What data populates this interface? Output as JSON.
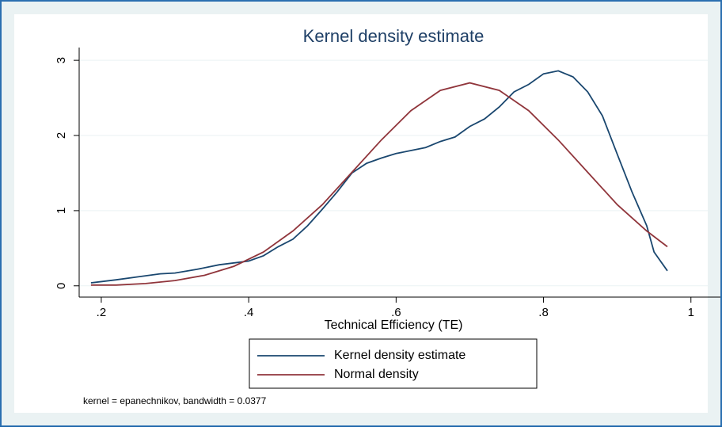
{
  "chart_data": {
    "type": "line",
    "title": "Kernel density estimate",
    "x_label": "Technical Efficiency (TE)",
    "note": "kernel = epanechnikov, bandwidth = 0.0377",
    "xlim": [
      0.17,
      1.04
    ],
    "ylim": [
      -0.15,
      3.17
    ],
    "xticks": [
      {
        "value": 0.2,
        "label": ".2"
      },
      {
        "value": 0.4,
        "label": ".4"
      },
      {
        "value": 0.6,
        "label": ".6"
      },
      {
        "value": 0.8,
        "label": ".8"
      },
      1
    ],
    "yticks": [
      0,
      1,
      2,
      3
    ],
    "grid": true,
    "series": [
      {
        "name": "Kernel density estimate",
        "color": "#1a476f",
        "x": [
          0.186,
          0.22,
          0.25,
          0.28,
          0.3,
          0.33,
          0.36,
          0.4,
          0.42,
          0.44,
          0.46,
          0.48,
          0.5,
          0.52,
          0.54,
          0.56,
          0.58,
          0.6,
          0.62,
          0.64,
          0.66,
          0.68,
          0.7,
          0.72,
          0.74,
          0.76,
          0.78,
          0.8,
          0.82,
          0.84,
          0.86,
          0.88,
          0.9,
          0.92,
          0.94,
          0.95,
          0.968
        ],
        "values": [
          0.04,
          0.08,
          0.12,
          0.16,
          0.17,
          0.22,
          0.28,
          0.33,
          0.4,
          0.52,
          0.62,
          0.8,
          1.02,
          1.25,
          1.5,
          1.63,
          1.7,
          1.76,
          1.8,
          1.84,
          1.92,
          1.98,
          2.12,
          2.22,
          2.38,
          2.58,
          2.68,
          2.82,
          2.86,
          2.78,
          2.58,
          2.26,
          1.75,
          1.25,
          0.8,
          0.45,
          0.2
        ]
      },
      {
        "name": "Normal density",
        "color": "#90353b",
        "x": [
          0.186,
          0.22,
          0.26,
          0.3,
          0.34,
          0.38,
          0.42,
          0.46,
          0.5,
          0.54,
          0.58,
          0.62,
          0.66,
          0.7,
          0.74,
          0.78,
          0.82,
          0.86,
          0.9,
          0.94,
          0.968
        ],
        "values": [
          0.01,
          0.01,
          0.03,
          0.07,
          0.14,
          0.26,
          0.45,
          0.73,
          1.08,
          1.51,
          1.94,
          2.33,
          2.6,
          2.7,
          2.6,
          2.33,
          1.94,
          1.51,
          1.08,
          0.73,
          0.52
        ]
      }
    ]
  }
}
